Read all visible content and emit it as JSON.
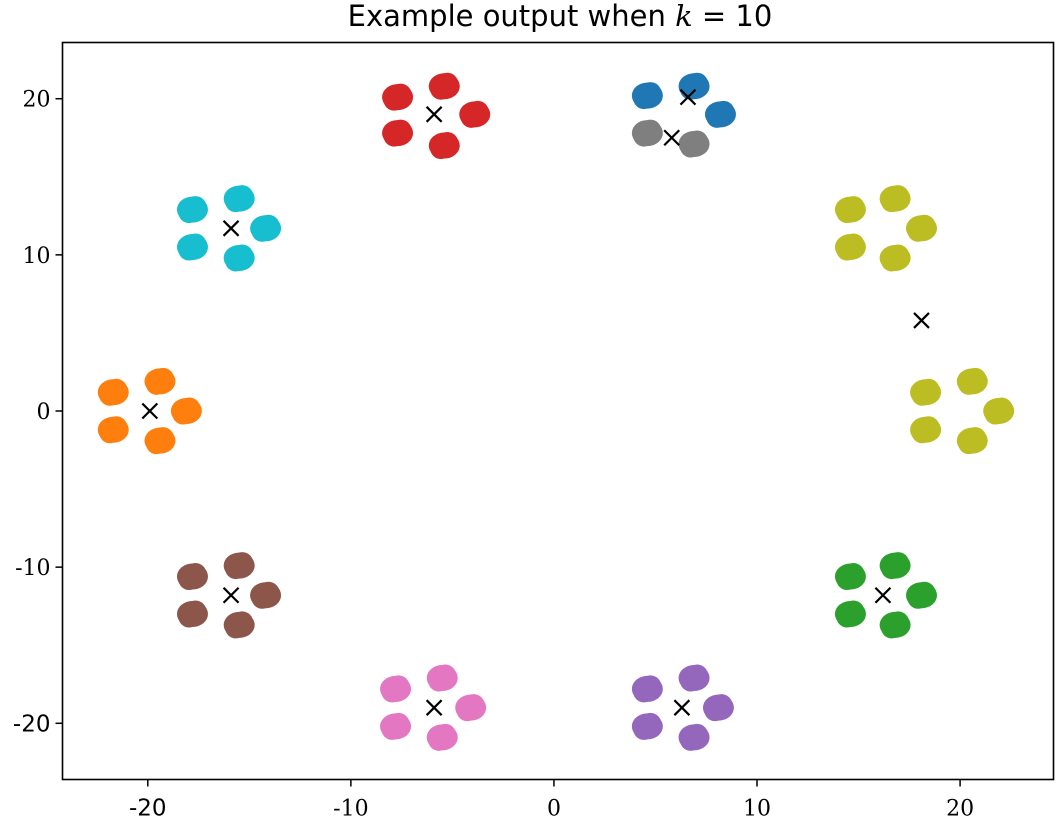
{
  "chart_data": {
    "type": "scatter",
    "title_prefix": "Example output when ",
    "title_var": "k",
    "title_suffix": " = 10",
    "xlabel": "",
    "ylabel": "",
    "xlim": [
      -24.2,
      24.6
    ],
    "ylim": [
      -23.6,
      23.6
    ],
    "grid": false,
    "legend": "none",
    "x_ticks": [
      {
        "value": -20,
        "label": "-20",
        "style": "sans"
      },
      {
        "value": -10,
        "label": "-10",
        "style": "serif"
      },
      {
        "value": 0,
        "label": "0",
        "style": "serif"
      },
      {
        "value": 10,
        "label": "10",
        "style": "serif"
      },
      {
        "value": 20,
        "label": "20",
        "style": "serif"
      }
    ],
    "y_ticks": [
      {
        "value": 20,
        "label": "20",
        "style": "serif"
      },
      {
        "value": 10,
        "label": "10",
        "style": "serif"
      },
      {
        "value": 0,
        "label": "0",
        "style": "serif"
      },
      {
        "value": -10,
        "label": "-10",
        "style": "serif"
      },
      {
        "value": -20,
        "label": "-20",
        "style": "sans"
      }
    ],
    "series": [
      {
        "color": "#d62728",
        "blobs": [
          [
            -5.4,
            20.8
          ],
          [
            -7.7,
            20.1
          ],
          [
            -3.9,
            19.0
          ],
          [
            -7.7,
            17.8
          ],
          [
            -5.4,
            17.0
          ]
        ]
      },
      {
        "color": "#1f77b4",
        "blobs": [
          [
            6.9,
            20.8
          ],
          [
            4.6,
            20.2
          ],
          [
            8.2,
            19.0
          ]
        ]
      },
      {
        "color": "#7f7f7f",
        "blobs": [
          [
            4.6,
            17.8
          ],
          [
            6.9,
            17.1
          ]
        ]
      },
      {
        "color": "#17becf",
        "blobs": [
          [
            -15.5,
            13.6
          ],
          [
            -17.8,
            12.9
          ],
          [
            -14.2,
            11.7
          ],
          [
            -17.8,
            10.5
          ],
          [
            -15.5,
            9.8
          ]
        ]
      },
      {
        "color": "#bcbd22",
        "blobs": [
          [
            16.8,
            13.6
          ],
          [
            14.6,
            12.9
          ],
          [
            18.1,
            11.7
          ],
          [
            14.6,
            10.5
          ],
          [
            16.8,
            9.8
          ],
          [
            20.6,
            1.9
          ],
          [
            18.3,
            1.2
          ],
          [
            21.9,
            0.0
          ],
          [
            18.3,
            -1.2
          ],
          [
            20.6,
            -1.9
          ]
        ]
      },
      {
        "color": "#ff7f0e",
        "blobs": [
          [
            -19.4,
            1.9
          ],
          [
            -21.7,
            1.2
          ],
          [
            -18.1,
            0.0
          ],
          [
            -21.7,
            -1.2
          ],
          [
            -19.4,
            -1.9
          ]
        ]
      },
      {
        "color": "#8c564b",
        "blobs": [
          [
            -15.5,
            -9.9
          ],
          [
            -17.8,
            -10.6
          ],
          [
            -14.2,
            -11.8
          ],
          [
            -17.8,
            -13.0
          ],
          [
            -15.5,
            -13.7
          ]
        ]
      },
      {
        "color": "#2ca02c",
        "blobs": [
          [
            16.8,
            -9.9
          ],
          [
            14.6,
            -10.6
          ],
          [
            18.1,
            -11.8
          ],
          [
            14.6,
            -13.0
          ],
          [
            16.8,
            -13.7
          ]
        ]
      },
      {
        "color": "#e377c2",
        "blobs": [
          [
            -5.5,
            -17.1
          ],
          [
            -7.8,
            -17.8
          ],
          [
            -4.1,
            -19.0
          ],
          [
            -7.8,
            -20.2
          ],
          [
            -5.5,
            -20.9
          ]
        ]
      },
      {
        "color": "#9467bd",
        "blobs": [
          [
            6.9,
            -17.1
          ],
          [
            4.6,
            -17.8
          ],
          [
            8.1,
            -19.0
          ],
          [
            4.6,
            -20.2
          ],
          [
            6.9,
            -20.9
          ]
        ]
      }
    ],
    "centroids": [
      [
        -5.9,
        19.0
      ],
      [
        6.6,
        20.1
      ],
      [
        5.8,
        17.5
      ],
      [
        -15.9,
        11.7
      ],
      [
        18.1,
        5.8
      ],
      [
        -19.9,
        0.0
      ],
      [
        -15.9,
        -11.8
      ],
      [
        16.2,
        -11.8
      ],
      [
        -5.9,
        -19.0
      ],
      [
        6.3,
        -19.0
      ]
    ],
    "centroid_marker": "x",
    "centroid_color": "#000000"
  }
}
